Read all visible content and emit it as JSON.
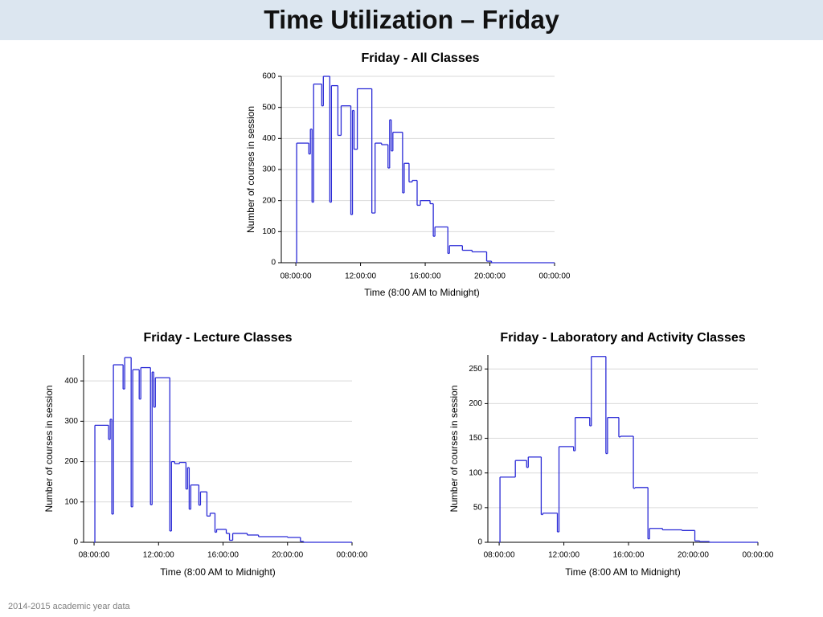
{
  "header": {
    "title": "Time Utilization – Friday"
  },
  "footer": "2014-2015 academic year data",
  "chart_data": [
    {
      "type": "line",
      "step": "post",
      "title": "Friday - All Classes",
      "x_label": "Time (8:00 AM to Midnight)",
      "y_label": "Number of courses in session",
      "color": "#2a2ad6",
      "grid": true,
      "x": [
        8.0,
        8.05,
        8.8,
        8.9,
        9.0,
        9.1,
        9.6,
        9.7,
        10.1,
        10.2,
        10.6,
        10.8,
        11.4,
        11.5,
        11.6,
        11.8,
        12.7,
        12.9,
        13.3,
        13.7,
        13.8,
        13.9,
        14.0,
        14.6,
        14.7,
        15.0,
        15.2,
        15.5,
        15.7,
        16.3,
        16.5,
        16.6,
        17.4,
        17.5,
        18.3,
        18.9,
        19.8,
        20.1,
        24.0
      ],
      "values": [
        0,
        385,
        350,
        430,
        195,
        575,
        505,
        600,
        195,
        570,
        410,
        505,
        155,
        490,
        365,
        560,
        160,
        385,
        380,
        305,
        460,
        360,
        420,
        225,
        320,
        260,
        265,
        185,
        200,
        190,
        85,
        115,
        30,
        55,
        40,
        35,
        5,
        0,
        0
      ],
      "xlim": [
        7.1,
        24
      ],
      "ylim": [
        0,
        600
      ],
      "xticks": [
        {
          "value": 8,
          "label": "08:00:00"
        },
        {
          "value": 12,
          "label": "12:00:00"
        },
        {
          "value": 16,
          "label": "16:00:00"
        },
        {
          "value": 20,
          "label": "20:00:00"
        },
        {
          "value": 24,
          "label": "00:00:00"
        }
      ],
      "yticks": [
        0,
        100,
        200,
        300,
        400,
        500,
        600
      ]
    },
    {
      "type": "line",
      "step": "post",
      "title": "Friday - Lecture Classes",
      "x_label": "Time (8:00 AM to Midnight)",
      "y_label": "Number of courses in session",
      "color": "#2a2ad6",
      "grid": true,
      "x": [
        8.0,
        8.05,
        8.9,
        9.0,
        9.1,
        9.2,
        9.8,
        9.9,
        10.3,
        10.4,
        10.8,
        10.9,
        11.5,
        11.6,
        11.7,
        11.8,
        12.7,
        12.8,
        13.0,
        13.3,
        13.7,
        13.8,
        13.9,
        14.0,
        14.5,
        14.6,
        15.0,
        15.2,
        15.5,
        15.6,
        16.2,
        16.4,
        16.6,
        17.5,
        18.2,
        20.0,
        20.8,
        21.0,
        24.0
      ],
      "values": [
        0,
        290,
        255,
        305,
        70,
        440,
        380,
        458,
        88,
        428,
        355,
        433,
        93,
        422,
        335,
        408,
        28,
        200,
        195,
        198,
        132,
        185,
        82,
        142,
        92,
        125,
        65,
        72,
        25,
        32,
        22,
        5,
        22,
        18,
        14,
        12,
        2,
        0,
        0
      ],
      "xlim": [
        7.35,
        24
      ],
      "ylim": [
        0,
        464
      ],
      "xticks": [
        {
          "value": 8,
          "label": "08:00:00"
        },
        {
          "value": 12,
          "label": "12:00:00"
        },
        {
          "value": 16,
          "label": "16:00:00"
        },
        {
          "value": 20,
          "label": "20:00:00"
        },
        {
          "value": 24,
          "label": "00:00:00"
        }
      ],
      "yticks": [
        0,
        100,
        200,
        300,
        400
      ]
    },
    {
      "type": "line",
      "step": "post",
      "title": "Friday - Laboratory and Activity Classes",
      "x_label": "Time (8:00 AM to Midnight)",
      "y_label": "Number of courses in session",
      "color": "#2a2ad6",
      "grid": true,
      "x": [
        8.0,
        8.05,
        9.0,
        9.7,
        9.8,
        10.6,
        10.7,
        11.6,
        11.7,
        12.6,
        12.7,
        13.6,
        13.7,
        14.6,
        14.7,
        15.4,
        15.5,
        16.3,
        16.4,
        17.2,
        17.3,
        18.1,
        19.3,
        20.1,
        20.4,
        21.0,
        24.0
      ],
      "values": [
        0,
        94,
        118,
        108,
        123,
        40,
        42,
        15,
        138,
        132,
        180,
        168,
        268,
        128,
        180,
        152,
        153,
        78,
        79,
        5,
        20,
        18,
        17,
        2,
        1,
        0,
        0
      ],
      "xlim": [
        7.3,
        24
      ],
      "ylim": [
        0,
        270
      ],
      "xticks": [
        {
          "value": 8,
          "label": "08:00:00"
        },
        {
          "value": 12,
          "label": "12:00:00"
        },
        {
          "value": 16,
          "label": "16:00:00"
        },
        {
          "value": 20,
          "label": "20:00:00"
        },
        {
          "value": 24,
          "label": "00:00:00"
        }
      ],
      "yticks": [
        0,
        50,
        100,
        150,
        200,
        250
      ]
    }
  ]
}
